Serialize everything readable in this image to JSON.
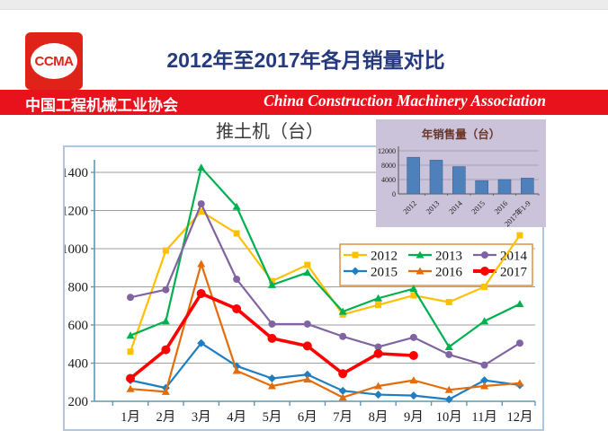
{
  "header": {
    "logo_text": "CCMA",
    "title": "2012年至2017年各月销量对比",
    "banner_cn": "中国工程机械工业协会",
    "banner_en": "China Construction Machinery Association"
  },
  "colors": {
    "banner_red": "#e8121c",
    "title_navy": "#25397e",
    "frame_border": "#adc6e2",
    "axis_teal": "#5e99ae",
    "gridline_gray": "#9e9e9e",
    "legend_border": "#da9441",
    "inset_background": "#cbc3d9",
    "inset_bar_blue": "#4e80bc"
  },
  "chart_data": [
    {
      "type": "line",
      "title": "推土机（台）",
      "categories": [
        "1月",
        "2月",
        "3月",
        "4月",
        "5月",
        "6月",
        "7月",
        "8月",
        "9月",
        "10月",
        "11月",
        "12月"
      ],
      "ylim": [
        200,
        1400
      ],
      "yticks": [
        200,
        400,
        600,
        800,
        1000,
        1200,
        1400
      ],
      "grid": true,
      "legend_position": "inside-right",
      "series": [
        {
          "name": "2012",
          "color": "#ffc000",
          "marker": "square",
          "values": [
            460,
            990,
            1195,
            1080,
            830,
            915,
            655,
            705,
            755,
            720,
            800,
            1070
          ]
        },
        {
          "name": "2013",
          "color": "#00b050",
          "marker": "triangle",
          "values": [
            545,
            620,
            1425,
            1220,
            810,
            875,
            670,
            740,
            790,
            485,
            620,
            710
          ]
        },
        {
          "name": "2014",
          "color": "#8064a2",
          "marker": "circle",
          "values": [
            745,
            785,
            1235,
            840,
            605,
            605,
            540,
            485,
            535,
            445,
            390,
            505
          ]
        },
        {
          "name": "2015",
          "color": "#1f7ec2",
          "marker": "diamond",
          "values": [
            310,
            270,
            505,
            385,
            320,
            340,
            255,
            235,
            230,
            210,
            310,
            285
          ]
        },
        {
          "name": "2016",
          "color": "#e36c0a",
          "marker": "triangle",
          "values": [
            265,
            250,
            920,
            360,
            280,
            315,
            220,
            280,
            310,
            260,
            280,
            295
          ]
        },
        {
          "name": "2017",
          "color": "#ff0000",
          "marker": "circle",
          "emphasis": true,
          "values": [
            320,
            470,
            765,
            685,
            530,
            490,
            345,
            450,
            440,
            null,
            null,
            null
          ]
        }
      ]
    },
    {
      "type": "bar",
      "title": "年销售量（台）",
      "categories": [
        "2012",
        "2013",
        "2014",
        "2015",
        "2016",
        "2017年1-9"
      ],
      "values": [
        10200,
        9400,
        7600,
        3700,
        4000,
        4400
      ],
      "ylim": [
        0,
        12000
      ],
      "yticks": [
        0,
        4000,
        8000,
        12000
      ],
      "grid": true
    }
  ]
}
